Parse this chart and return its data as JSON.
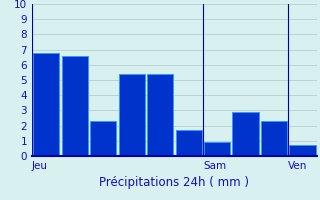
{
  "bars": [
    6.8,
    6.6,
    2.3,
    5.4,
    5.4,
    1.7,
    0.9,
    2.9,
    2.3,
    0.7
  ],
  "bar_color": "#0033cc",
  "bar_edge_color": "#3399ff",
  "background_color": "#d8f0f0",
  "grid_color": "#b0c8c8",
  "axis_color": "#0000aa",
  "text_color": "#1111bb",
  "xlabel": "Précipitations 24h ( mm )",
  "ylim": [
    0,
    10
  ],
  "yticks": [
    0,
    1,
    2,
    3,
    4,
    5,
    6,
    7,
    8,
    9,
    10
  ],
  "day_labels": [
    "Jeu",
    "Sam",
    "Ven"
  ],
  "day_bar_starts": [
    0,
    6,
    9
  ],
  "n_bars": 10,
  "label_fontsize": 7.5,
  "xlabel_fontsize": 8.5
}
